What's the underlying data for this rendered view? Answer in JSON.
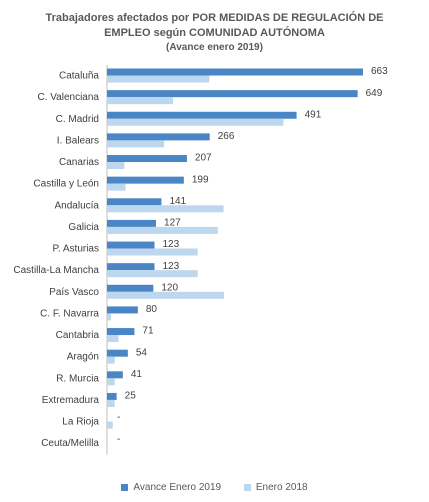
{
  "colors": {
    "series1": "#4a86c5",
    "series2": "#bcd7ee",
    "axis": "#bfbfbf",
    "text": "#404040"
  },
  "chart_data": {
    "type": "bar",
    "orientation": "horizontal",
    "title_line1": "Trabajadores afectados por POR MEDIDAS DE REGULACIÓN DE",
    "title_line2": "EMPLEO según COMUNIDAD AUTÓNOMA",
    "subtitle": "(Avance enero 2019)",
    "categories": [
      "Cataluña",
      "C. Valenciana",
      "C. Madrid",
      "I. Balears",
      "Canarias",
      "Castilla y León",
      "Andalucía",
      "Galicia",
      "P. Asturias",
      "Castilla-La Mancha",
      "País Vasco",
      "C. F. Navarra",
      "Cantabria",
      "Aragón",
      "R. Murcia",
      "Extremadura",
      "La Rioja",
      "Ceuta/Melilla"
    ],
    "series": [
      {
        "name": "Avance Enero 2019",
        "values": [
          663,
          649,
          491,
          266,
          207,
          199,
          141,
          127,
          123,
          123,
          120,
          80,
          71,
          54,
          41,
          25,
          0,
          0
        ],
        "labels": [
          "663",
          "649",
          "491",
          "266",
          "207",
          "199",
          "141",
          "127",
          "123",
          "123",
          "120",
          "80",
          "71",
          "54",
          "41",
          "25",
          "-",
          "-"
        ]
      },
      {
        "name": "Enero 2018",
        "values": [
          265,
          171,
          457,
          148,
          45,
          48,
          302,
          287,
          235,
          235,
          303,
          10,
          30,
          20,
          20,
          20,
          15,
          0
        ]
      }
    ],
    "xlim": [
      0,
      700
    ],
    "legend_position": "bottom"
  }
}
